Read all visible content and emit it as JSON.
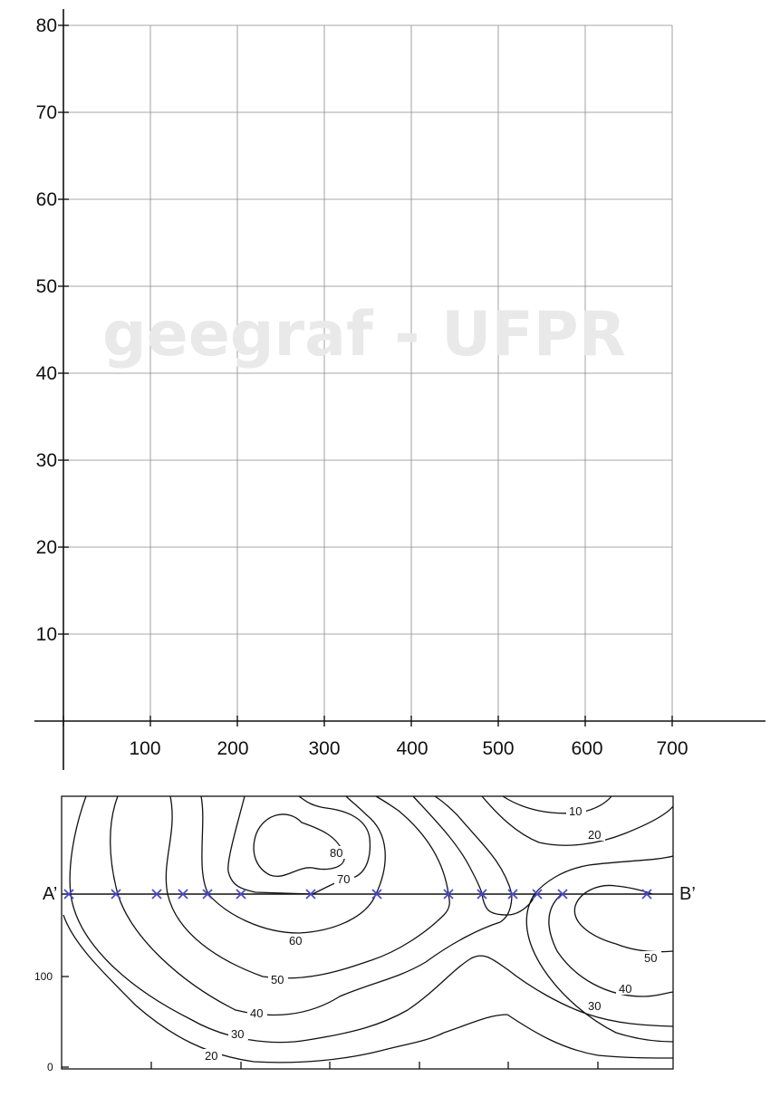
{
  "profile_grid": {
    "y_ticks": [
      "80",
      "70",
      "60",
      "50",
      "40",
      "30",
      "20",
      "10"
    ],
    "x_ticks": [
      "100",
      "200",
      "300",
      "400",
      "500",
      "600",
      "700"
    ]
  },
  "watermark": "geegraf - UFPR",
  "map": {
    "point_a": "A’",
    "point_b": "B’",
    "y_label_100": "100",
    "y_label_0": "0",
    "contour_labels": [
      {
        "text": "10"
      },
      {
        "text": "20"
      },
      {
        "text": "80"
      },
      {
        "text": "70"
      },
      {
        "text": "60"
      },
      {
        "text": "50"
      },
      {
        "text": "40"
      },
      {
        "text": "30"
      },
      {
        "text": "20"
      },
      {
        "text": "50"
      },
      {
        "text": "40"
      },
      {
        "text": "30"
      }
    ],
    "crossing_marker_count": 13,
    "colors": {
      "marker": "#4a4ad0",
      "line": "#000000",
      "grid": "#888888"
    }
  }
}
